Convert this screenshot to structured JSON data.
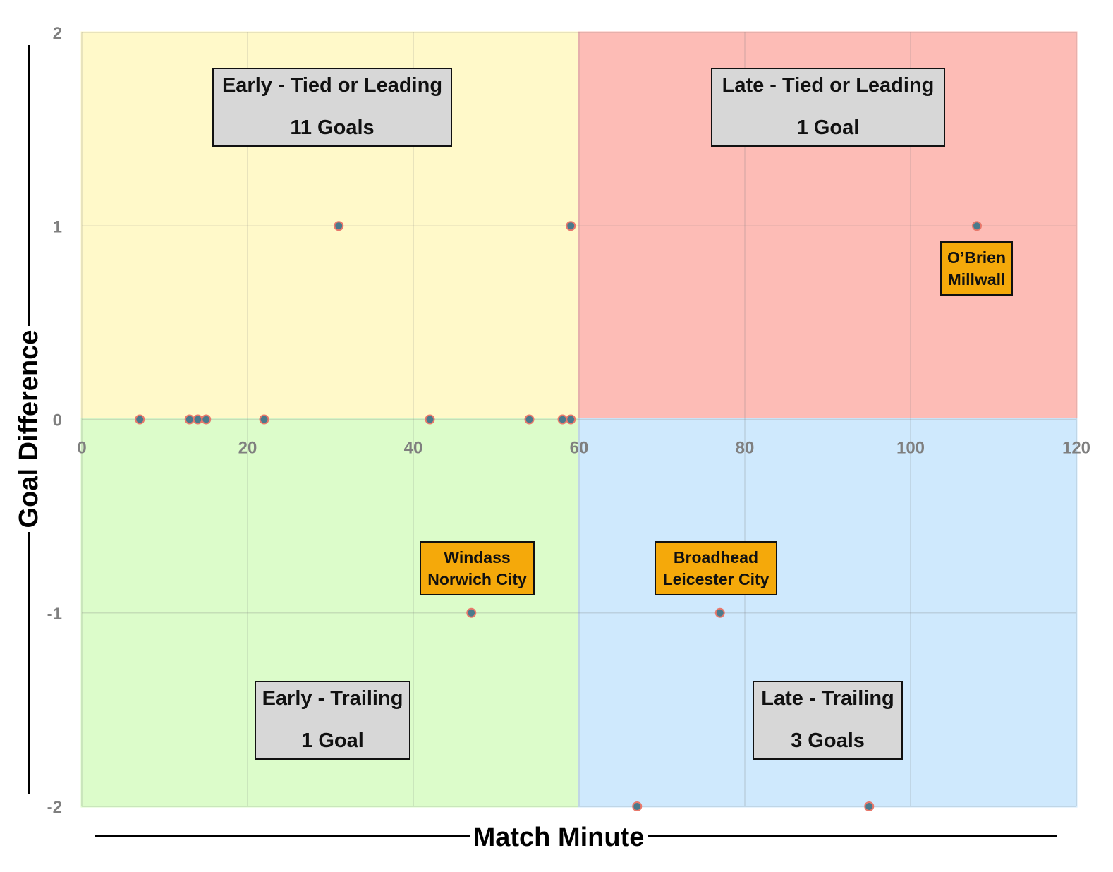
{
  "chart_data": {
    "type": "scatter",
    "xlabel": "Match Minute",
    "ylabel": "Goal Difference",
    "xlim": [
      0,
      120
    ],
    "ylim": [
      -2,
      2
    ],
    "x_ticks": [
      "0",
      "20",
      "40",
      "60",
      "80",
      "100",
      "120"
    ],
    "y_ticks": [
      "2",
      "1",
      "0",
      "-1",
      "-2"
    ],
    "grid": true,
    "quadrant_split": {
      "x": 60,
      "y": 0
    },
    "quadrants": [
      {
        "name": "early-leading",
        "title": "Early - Tied or Leading",
        "count": "11 Goals",
        "color": "#fff9c9",
        "x": [
          0,
          60
        ],
        "y": [
          0,
          2
        ]
      },
      {
        "name": "late-leading",
        "title": "Late - Tied or Leading",
        "count": "1 Goal",
        "color": "#fdbcb6",
        "x": [
          60,
          120
        ],
        "y": [
          0,
          2
        ]
      },
      {
        "name": "early-trailing",
        "title": "Early - Trailing",
        "count": "1 Goal",
        "color": "#dcfcca",
        "x": [
          0,
          60
        ],
        "y": [
          -2,
          0
        ]
      },
      {
        "name": "late-trailing",
        "title": "Late - Trailing",
        "count": "3 Goals",
        "color": "#cfe9fd",
        "x": [
          60,
          120
        ],
        "y": [
          -2,
          0
        ]
      }
    ],
    "points": [
      {
        "x": 7,
        "y": 0
      },
      {
        "x": 13,
        "y": 0
      },
      {
        "x": 14,
        "y": 0
      },
      {
        "x": 15,
        "y": 0
      },
      {
        "x": 22,
        "y": 0
      },
      {
        "x": 31,
        "y": 1
      },
      {
        "x": 42,
        "y": 0
      },
      {
        "x": 54,
        "y": 0
      },
      {
        "x": 58,
        "y": 0
      },
      {
        "x": 59,
        "y": 0
      },
      {
        "x": 59,
        "y": 1
      },
      {
        "x": 47,
        "y": -1
      },
      {
        "x": 108,
        "y": 1
      },
      {
        "x": 67,
        "y": -2
      },
      {
        "x": 77,
        "y": -1
      },
      {
        "x": 95,
        "y": -2
      }
    ],
    "annotations": [
      {
        "player": "O’Brien",
        "team": "Millwall",
        "x": 108,
        "y": 1
      },
      {
        "player": "Windass",
        "team": "Norwich City",
        "x": 47,
        "y": -1
      },
      {
        "player": "Broadhead",
        "team": "Leicester City",
        "x": 77,
        "y": -1
      }
    ],
    "marker_fill": "#4a7a8c",
    "marker_edge": "#e8786b",
    "label_color": "#f5a90a"
  }
}
